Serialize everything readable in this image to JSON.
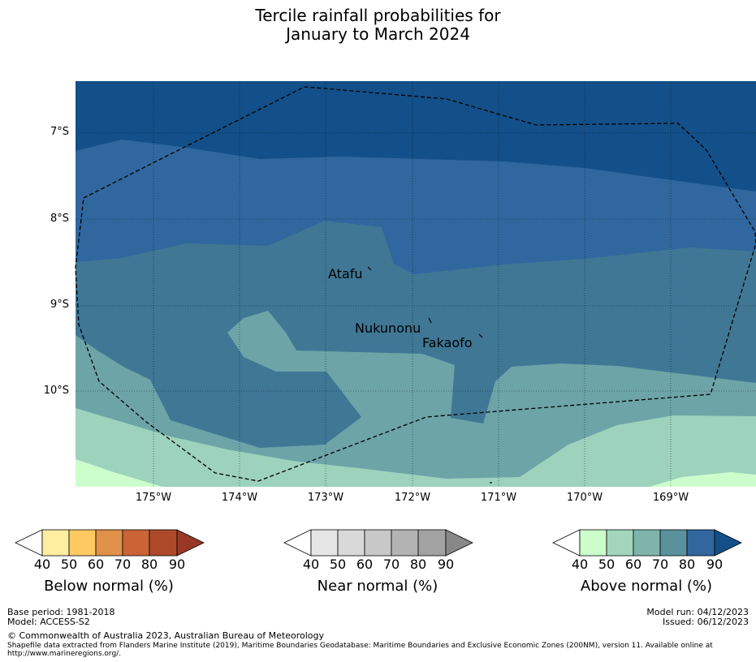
{
  "title": {
    "line1": "Tercile rainfall probabilities for",
    "line2": "January to March 2024"
  },
  "map": {
    "latitude_labels": [
      "7°S",
      "8°S",
      "9°S",
      "10°S"
    ],
    "longitude_labels": [
      "175°W",
      "174°W",
      "173°W",
      "172°W",
      "171°W",
      "170°W",
      "169°W"
    ],
    "places": [
      "Atafu",
      "Nukunonu",
      "Fakaofo"
    ],
    "colors": {
      "ocean_background": "#134f88",
      "above_80": "#30679e",
      "above_70": "#3f7795",
      "above_60": "#6ca4a8",
      "above_50": "#9dd2bc",
      "above_40": "#ccfecc",
      "eez_line": "#000000"
    }
  },
  "colorbars": [
    {
      "label": "Below normal (%)",
      "ticks": [
        "40",
        "50",
        "60",
        "70",
        "80",
        "90"
      ],
      "colors": [
        "#ffffff",
        "#ffeda0",
        "#fec962",
        "#e0914a",
        "#ca6336",
        "#ad4a2a",
        "#993825"
      ]
    },
    {
      "label": "Near normal (%)",
      "ticks": [
        "40",
        "50",
        "60",
        "70",
        "80",
        "90"
      ],
      "colors": [
        "#ffffff",
        "#e6e6e6",
        "#d9d9d9",
        "#c8c8c8",
        "#b3b3b3",
        "#a2a2a2",
        "#888888"
      ]
    },
    {
      "label": "Above normal (%)",
      "ticks": [
        "40",
        "50",
        "60",
        "70",
        "80",
        "90"
      ],
      "colors": [
        "#ffffff",
        "#ccfecc",
        "#a3d6bd",
        "#7fb4ac",
        "#5a919c",
        "#30679e",
        "#134f88"
      ]
    }
  ],
  "footer": {
    "base_period": "Base period: 1981-2018",
    "model": "Model: ACCESS-S2",
    "model_run": "Model run: 04/12/2023",
    "issued": "Issued: 06/12/2023",
    "copyright": "© Commonwealth of Australia 2023, Australian Bureau of Meteorology",
    "shapefile_note": "Shapefile data extracted from Flanders Marine Institute (2019), Maritime Boundaries Geodatabase: Maritime Boundaries and Exclusive Economic Zones (200NM), version 11. Available online at http://www.marineregions.org/."
  }
}
